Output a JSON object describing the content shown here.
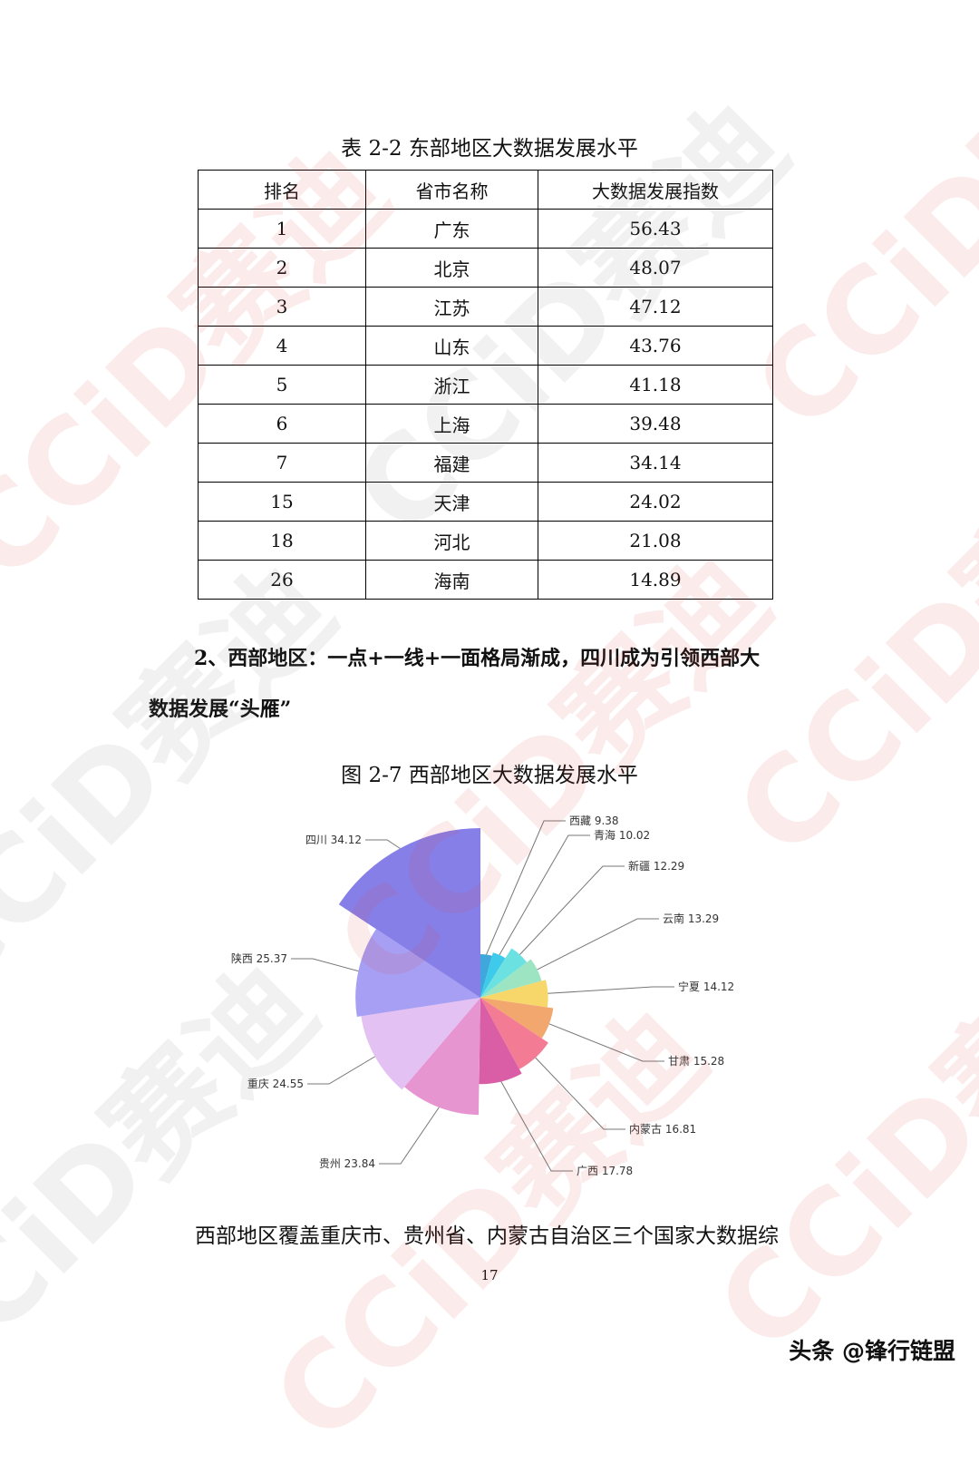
{
  "table": {
    "caption": "表 2-2  东部地区大数据发展水平",
    "headers": [
      "排名",
      "省市名称",
      "大数据发展指数"
    ],
    "rows": [
      [
        "1",
        "广东",
        "56.43"
      ],
      [
        "2",
        "北京",
        "48.07"
      ],
      [
        "3",
        "江苏",
        "47.12"
      ],
      [
        "4",
        "山东",
        "43.76"
      ],
      [
        "5",
        "浙江",
        "41.18"
      ],
      [
        "6",
        "上海",
        "39.48"
      ],
      [
        "7",
        "福建",
        "34.14"
      ],
      [
        "15",
        "天津",
        "24.02"
      ],
      [
        "18",
        "河北",
        "21.08"
      ],
      [
        "26",
        "海南",
        "14.89"
      ]
    ]
  },
  "section_heading": {
    "line1": "2、西部地区：一点+一线+一面格局渐成，四川成为引领西部大",
    "line2": "数据发展“头雁”"
  },
  "figure_caption": "图 2-7  西部地区大数据发展水平",
  "chart_data": {
    "type": "pie",
    "variant": "rose",
    "categories": [
      "西藏",
      "青海",
      "新疆",
      "云南",
      "宁夏",
      "甘肃",
      "内蒙古",
      "广西",
      "贵州",
      "重庆",
      "陕西",
      "四川"
    ],
    "values": [
      9.38,
      10.02,
      12.29,
      13.29,
      14.12,
      15.28,
      16.81,
      17.78,
      23.84,
      24.55,
      25.37,
      34.12
    ],
    "labels": [
      "西藏 9.38",
      "青海 10.02",
      "新疆 12.29",
      "云南 13.29",
      "宁夏 14.12",
      "甘肃 15.28",
      "内蒙古 16.81",
      "广西 17.78",
      "贵州 23.84",
      "重庆 24.55",
      "陕西 25.37",
      "四川 34.12"
    ],
    "colors": [
      "#2f9fd8",
      "#2ec5e8",
      "#5fdede",
      "#94e2bd",
      "#f6d45c",
      "#f0a062",
      "#f2708a",
      "#d6509e",
      "#e48ccd",
      "#e2bcf2",
      "#9f97f2",
      "#7d74e6"
    ],
    "legend": "none"
  },
  "paragraph": "西部地区覆盖重庆市、贵州省、内蒙古自治区三个国家大数据综",
  "page_number": "17",
  "watermark": "CCID 赛迪",
  "credit": "头条 @锋行链盟"
}
